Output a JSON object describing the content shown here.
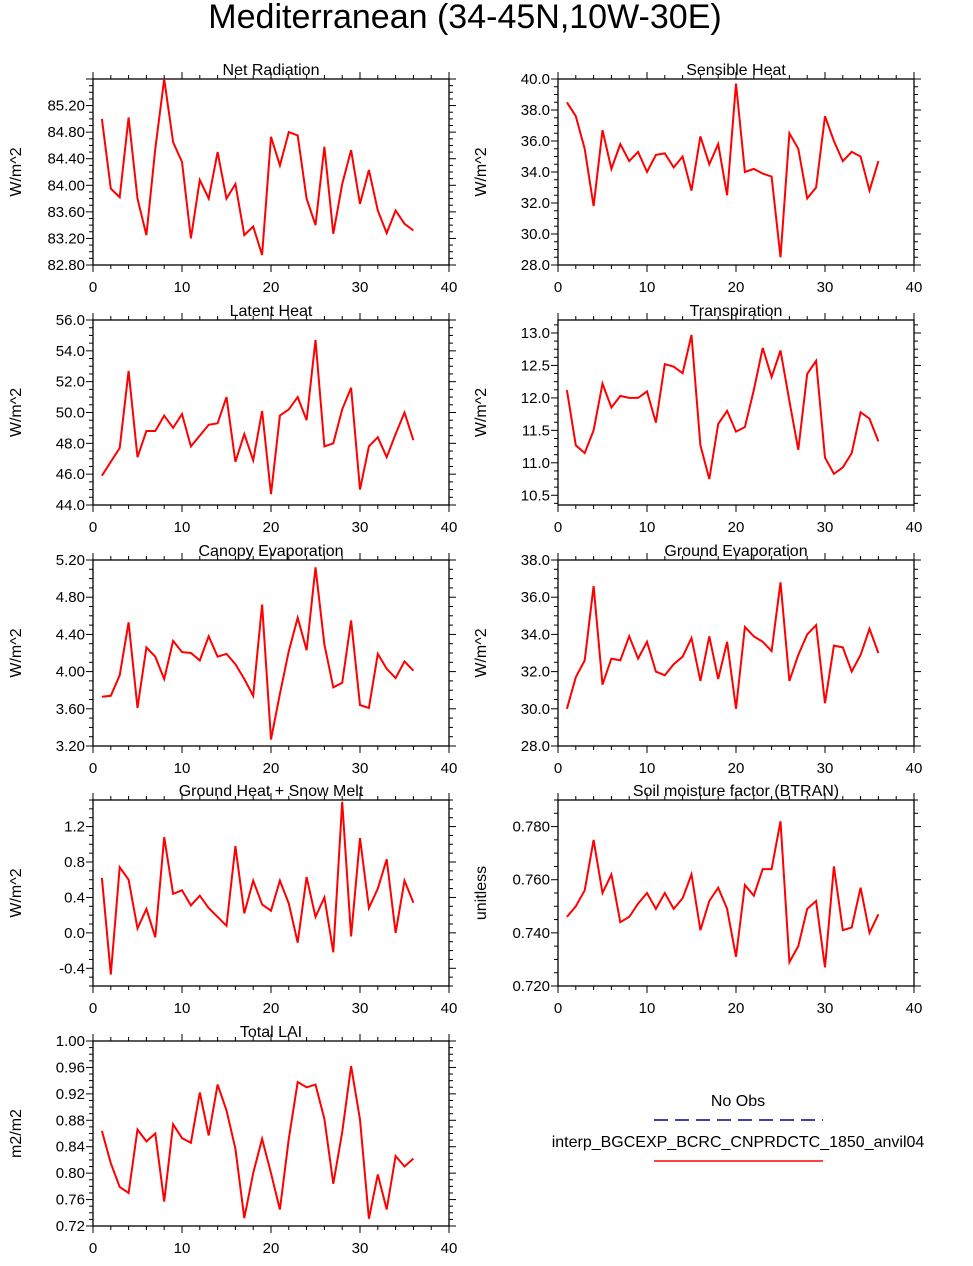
{
  "figure_title": "Mediterranean (34-45N,10W-30E)",
  "colors": {
    "model_line": "#ff0000",
    "obs_line": "#000099",
    "axis": "#000000"
  },
  "legend": {
    "obs_label": "No Obs",
    "model_label": "interp_BGCEXP_BCRC_CNPRDCTC_1850_anvil04"
  },
  "chart_data": [
    {
      "id": "net-radiation",
      "type": "line",
      "title": "Net Radiation",
      "ylabel": "W/m^2",
      "xlim": [
        0,
        40
      ],
      "xticks": [
        0,
        10,
        20,
        30,
        40
      ],
      "ylim": [
        82.8,
        85.6
      ],
      "yticks": [
        82.8,
        83.2,
        83.6,
        84.0,
        84.4,
        84.8,
        85.2
      ],
      "ytick_decimals": 2,
      "x": [
        1,
        2,
        3,
        4,
        5,
        6,
        7,
        8,
        9,
        10,
        11,
        12,
        13,
        14,
        15,
        16,
        17,
        18,
        19,
        20,
        21,
        22,
        23,
        24,
        25,
        26,
        27,
        28,
        29,
        30,
        31,
        32,
        33,
        34,
        35,
        36
      ],
      "series": [
        {
          "name": "interp_BGCEXP_BCRC_CNPRDCTC_1850_anvil04",
          "values": [
            85.0,
            83.95,
            83.82,
            85.02,
            83.8,
            83.25,
            84.55,
            85.6,
            84.65,
            84.35,
            83.2,
            84.08,
            83.8,
            84.5,
            83.8,
            84.02,
            83.25,
            83.38,
            82.95,
            84.73,
            84.3,
            84.8,
            84.75,
            83.8,
            83.4,
            84.58,
            83.27,
            84.02,
            84.53,
            83.72,
            84.23,
            83.62,
            83.28,
            83.62,
            83.42,
            83.32
          ]
        }
      ]
    },
    {
      "id": "sensible-heat",
      "type": "line",
      "title": "Sensible Heat",
      "ylabel": "W/m^2",
      "xlim": [
        0,
        40
      ],
      "xticks": [
        0,
        10,
        20,
        30,
        40
      ],
      "ylim": [
        28.0,
        40.0
      ],
      "yticks": [
        28.0,
        30.0,
        32.0,
        34.0,
        36.0,
        38.0,
        40.0
      ],
      "ytick_decimals": 1,
      "x": [
        1,
        2,
        3,
        4,
        5,
        6,
        7,
        8,
        9,
        10,
        11,
        12,
        13,
        14,
        15,
        16,
        17,
        18,
        19,
        20,
        21,
        22,
        23,
        24,
        25,
        26,
        27,
        28,
        29,
        30,
        31,
        32,
        33,
        34,
        35,
        36
      ],
      "series": [
        {
          "name": "interp_BGCEXP_BCRC_CNPRDCTC_1850_anvil04",
          "values": [
            38.5,
            37.6,
            35.5,
            31.8,
            36.7,
            34.2,
            35.8,
            34.7,
            35.3,
            34.0,
            35.1,
            35.2,
            34.3,
            35.0,
            32.8,
            36.3,
            34.5,
            35.8,
            32.5,
            39.7,
            34.0,
            34.2,
            33.9,
            33.7,
            28.5,
            36.5,
            35.5,
            32.3,
            33.0,
            37.6,
            36.0,
            34.7,
            35.3,
            35.0,
            32.8,
            34.7
          ]
        }
      ]
    },
    {
      "id": "latent-heat",
      "type": "line",
      "title": "Latent Heat",
      "ylabel": "W/m^2",
      "xlim": [
        0,
        40
      ],
      "xticks": [
        0,
        10,
        20,
        30,
        40
      ],
      "ylim": [
        44.0,
        56.0
      ],
      "yticks": [
        44.0,
        46.0,
        48.0,
        50.0,
        52.0,
        54.0,
        56.0
      ],
      "ytick_decimals": 1,
      "x": [
        1,
        2,
        3,
        4,
        5,
        6,
        7,
        8,
        9,
        10,
        11,
        12,
        13,
        14,
        15,
        16,
        17,
        18,
        19,
        20,
        21,
        22,
        23,
        24,
        25,
        26,
        27,
        28,
        29,
        30,
        31,
        32,
        33,
        34,
        35,
        36
      ],
      "series": [
        {
          "name": "interp_BGCEXP_BCRC_CNPRDCTC_1850_anvil04",
          "values": [
            45.9,
            46.8,
            47.7,
            52.7,
            47.1,
            48.8,
            48.8,
            49.8,
            49.0,
            49.9,
            47.8,
            48.5,
            49.2,
            49.3,
            51.0,
            46.8,
            48.6,
            46.9,
            50.1,
            44.7,
            49.8,
            50.2,
            51.0,
            49.5,
            54.7,
            47.8,
            48.0,
            50.2,
            51.6,
            45.0,
            47.8,
            48.4,
            47.1,
            48.6,
            50.0,
            48.2
          ]
        }
      ]
    },
    {
      "id": "transpiration",
      "type": "line",
      "title": "Transpiration",
      "ylabel": "W/m^2",
      "xlim": [
        0,
        40
      ],
      "xticks": [
        0,
        10,
        20,
        30,
        40
      ],
      "ylim": [
        10.35,
        13.2
      ],
      "yticks": [
        10.5,
        11.0,
        11.5,
        12.0,
        12.5,
        13.0
      ],
      "ytick_decimals": 1,
      "x": [
        1,
        2,
        3,
        4,
        5,
        6,
        7,
        8,
        9,
        10,
        11,
        12,
        13,
        14,
        15,
        16,
        17,
        18,
        19,
        20,
        21,
        22,
        23,
        24,
        25,
        26,
        27,
        28,
        29,
        30,
        31,
        32,
        33,
        34,
        35,
        36
      ],
      "series": [
        {
          "name": "interp_BGCEXP_BCRC_CNPRDCTC_1850_anvil04",
          "values": [
            12.12,
            11.27,
            11.15,
            11.5,
            12.22,
            11.85,
            12.03,
            12.0,
            12.0,
            12.1,
            11.62,
            12.52,
            12.48,
            12.38,
            12.97,
            11.27,
            10.75,
            11.6,
            11.8,
            11.48,
            11.55,
            12.12,
            12.77,
            12.32,
            12.73,
            11.95,
            11.2,
            12.37,
            12.57,
            11.08,
            10.83,
            10.93,
            11.15,
            11.78,
            11.68,
            11.33
          ]
        }
      ]
    },
    {
      "id": "canopy-evaporation",
      "type": "line",
      "title": "Canopy Evaporation",
      "ylabel": "W/m^2",
      "xlim": [
        0,
        40
      ],
      "xticks": [
        0,
        10,
        20,
        30,
        40
      ],
      "ylim": [
        3.2,
        5.2
      ],
      "yticks": [
        3.2,
        3.6,
        4.0,
        4.4,
        4.8,
        5.2
      ],
      "ytick_decimals": 2,
      "x": [
        1,
        2,
        3,
        4,
        5,
        6,
        7,
        8,
        9,
        10,
        11,
        12,
        13,
        14,
        15,
        16,
        17,
        18,
        19,
        20,
        21,
        22,
        23,
        24,
        25,
        26,
        27,
        28,
        29,
        30,
        31,
        32,
        33,
        34,
        35,
        36
      ],
      "series": [
        {
          "name": "interp_BGCEXP_BCRC_CNPRDCTC_1850_anvil04",
          "values": [
            3.73,
            3.74,
            3.96,
            4.53,
            3.61,
            4.26,
            4.16,
            3.92,
            4.33,
            4.21,
            4.2,
            4.12,
            4.38,
            4.16,
            4.19,
            4.08,
            3.92,
            3.74,
            4.72,
            3.27,
            3.76,
            4.22,
            4.58,
            4.23,
            5.12,
            4.29,
            3.83,
            3.88,
            4.55,
            3.64,
            3.61,
            4.19,
            4.03,
            3.93,
            4.11,
            4.01
          ]
        }
      ]
    },
    {
      "id": "ground-evaporation",
      "type": "line",
      "title": "Ground Evaporation",
      "ylabel": "W/m^2",
      "xlim": [
        0,
        40
      ],
      "xticks": [
        0,
        10,
        20,
        30,
        40
      ],
      "ylim": [
        28.0,
        38.0
      ],
      "yticks": [
        28.0,
        30.0,
        32.0,
        34.0,
        36.0,
        38.0
      ],
      "ytick_decimals": 1,
      "x": [
        1,
        2,
        3,
        4,
        5,
        6,
        7,
        8,
        9,
        10,
        11,
        12,
        13,
        14,
        15,
        16,
        17,
        18,
        19,
        20,
        21,
        22,
        23,
        24,
        25,
        26,
        27,
        28,
        29,
        30,
        31,
        32,
        33,
        34,
        35,
        36
      ],
      "series": [
        {
          "name": "interp_BGCEXP_BCRC_CNPRDCTC_1850_anvil04",
          "values": [
            30.0,
            31.7,
            32.6,
            36.6,
            31.3,
            32.7,
            32.6,
            33.9,
            32.7,
            33.6,
            32.0,
            31.8,
            32.4,
            32.8,
            33.8,
            31.5,
            33.9,
            31.6,
            33.6,
            30.0,
            34.4,
            33.9,
            33.6,
            33.1,
            36.8,
            31.5,
            32.9,
            34.0,
            34.5,
            30.3,
            33.4,
            33.3,
            32.0,
            32.9,
            34.3,
            33.0
          ]
        }
      ]
    },
    {
      "id": "ground-heat-snow-melt",
      "type": "line",
      "title": "Ground Heat + Snow Melt",
      "ylabel": "W/m^2",
      "xlim": [
        0,
        40
      ],
      "xticks": [
        0,
        10,
        20,
        30,
        40
      ],
      "ylim": [
        -0.6,
        1.5
      ],
      "yticks": [
        -0.4,
        0.0,
        0.4,
        0.8,
        1.2
      ],
      "ytick_decimals": 1,
      "x": [
        1,
        2,
        3,
        4,
        5,
        6,
        7,
        8,
        9,
        10,
        11,
        12,
        13,
        14,
        15,
        16,
        17,
        18,
        19,
        20,
        21,
        22,
        23,
        24,
        25,
        26,
        27,
        28,
        29,
        30,
        31,
        32,
        33,
        34,
        35,
        36
      ],
      "series": [
        {
          "name": "interp_BGCEXP_BCRC_CNPRDCTC_1850_anvil04",
          "values": [
            0.62,
            -0.47,
            0.74,
            0.6,
            0.05,
            0.27,
            -0.05,
            1.08,
            0.44,
            0.48,
            0.31,
            0.42,
            0.28,
            0.18,
            0.08,
            0.98,
            0.22,
            0.59,
            0.32,
            0.25,
            0.59,
            0.33,
            -0.11,
            0.63,
            0.18,
            0.4,
            -0.22,
            1.48,
            -0.04,
            1.07,
            0.28,
            0.5,
            0.83,
            0.0,
            0.59,
            0.34
          ]
        }
      ]
    },
    {
      "id": "soil-moisture-factor",
      "type": "line",
      "title": "Soil moisture factor (BTRAN)",
      "ylabel": "unitless",
      "xlim": [
        0,
        40
      ],
      "xticks": [
        0,
        10,
        20,
        30,
        40
      ],
      "ylim": [
        0.72,
        0.79
      ],
      "yticks": [
        0.72,
        0.74,
        0.76,
        0.78
      ],
      "ytick_decimals": 3,
      "x": [
        1,
        2,
        3,
        4,
        5,
        6,
        7,
        8,
        9,
        10,
        11,
        12,
        13,
        14,
        15,
        16,
        17,
        18,
        19,
        20,
        21,
        22,
        23,
        24,
        25,
        26,
        27,
        28,
        29,
        30,
        31,
        32,
        33,
        34,
        35,
        36
      ],
      "series": [
        {
          "name": "interp_BGCEXP_BCRC_CNPRDCTC_1850_anvil04",
          "values": [
            0.746,
            0.75,
            0.756,
            0.775,
            0.755,
            0.762,
            0.744,
            0.746,
            0.751,
            0.755,
            0.749,
            0.755,
            0.749,
            0.753,
            0.762,
            0.741,
            0.752,
            0.757,
            0.749,
            0.731,
            0.758,
            0.754,
            0.764,
            0.764,
            0.782,
            0.729,
            0.735,
            0.749,
            0.752,
            0.727,
            0.765,
            0.741,
            0.742,
            0.757,
            0.74,
            0.747
          ]
        }
      ]
    },
    {
      "id": "total-lai",
      "type": "line",
      "title": "Total LAI",
      "ylabel": "m2/m2",
      "xlim": [
        0,
        40
      ],
      "xticks": [
        0,
        10,
        20,
        30,
        40
      ],
      "ylim": [
        0.72,
        1.0
      ],
      "yticks": [
        0.72,
        0.76,
        0.8,
        0.84,
        0.88,
        0.92,
        0.96,
        1.0
      ],
      "ytick_decimals": 2,
      "x": [
        1,
        2,
        3,
        4,
        5,
        6,
        7,
        8,
        9,
        10,
        11,
        12,
        13,
        14,
        15,
        16,
        17,
        18,
        19,
        20,
        21,
        22,
        23,
        24,
        25,
        26,
        27,
        28,
        29,
        30,
        31,
        32,
        33,
        34,
        35,
        36
      ],
      "series": [
        {
          "name": "interp_BGCEXP_BCRC_CNPRDCTC_1850_anvil04",
          "values": [
            0.864,
            0.815,
            0.779,
            0.77,
            0.866,
            0.848,
            0.86,
            0.757,
            0.874,
            0.853,
            0.846,
            0.922,
            0.857,
            0.934,
            0.895,
            0.837,
            0.732,
            0.8,
            0.852,
            0.8,
            0.745,
            0.852,
            0.938,
            0.93,
            0.934,
            0.882,
            0.784,
            0.862,
            0.962,
            0.881,
            0.731,
            0.798,
            0.745,
            0.826,
            0.81,
            0.822
          ]
        }
      ]
    }
  ]
}
